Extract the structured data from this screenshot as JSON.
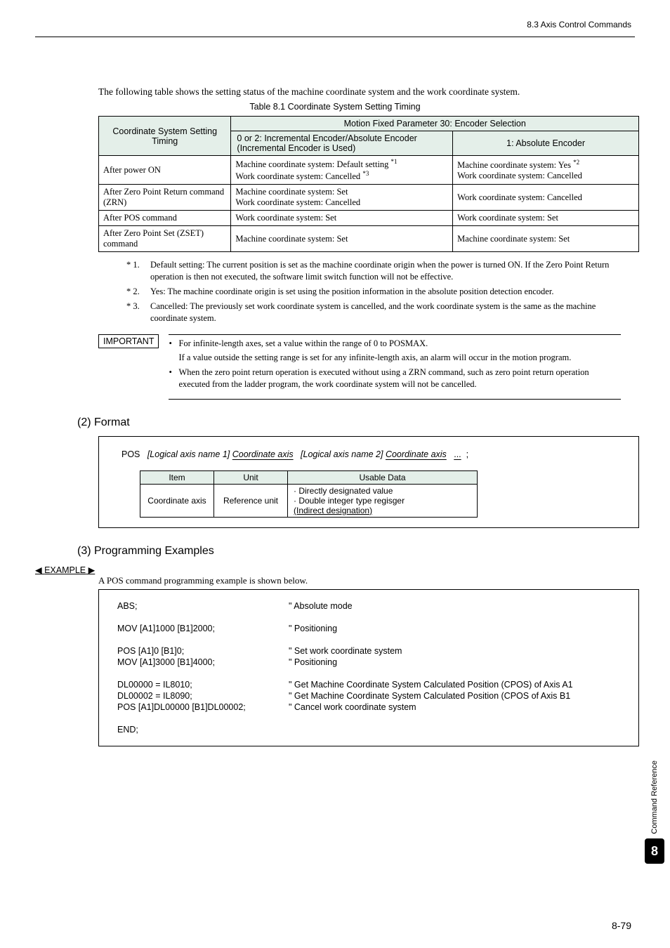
{
  "header": {
    "section": "8.3  Axis Control Commands"
  },
  "intro": "The following table shows the setting status of the machine coordinate system and the work coordinate system.",
  "table_caption": "Table 8.1  Coordinate System Setting Timing",
  "table": {
    "col0_header": "Coordinate System Setting Timing",
    "group_header": "Motion Fixed Parameter 30: Encoder Selection",
    "sub_header_a": "0 or 2: Incremental Encoder/Absolute Encoder (Incremental Encoder is Used)",
    "sub_header_b": "1: Absolute Encoder",
    "rows": [
      {
        "c0": "After power ON",
        "c1a": "Machine coordinate system: Default setting ",
        "c1a_sup": "*1",
        "c1b": "Work coordinate system: Cancelled ",
        "c1b_sup": "*3",
        "c2a": "Machine coordinate system: Yes ",
        "c2a_sup": "*2",
        "c2b": "Work coordinate system: Cancelled"
      },
      {
        "c0": "After Zero Point Return command (ZRN)",
        "c1a": "Machine coordinate system: Set",
        "c1b": "Work coordinate system: Cancelled",
        "c2": "Work coordinate system: Cancelled"
      },
      {
        "c0": "After POS command",
        "c1": "Work coordinate system: Set",
        "c2": "Work coordinate system: Set"
      },
      {
        "c0": "After Zero Point Set (ZSET) command",
        "c1": "Machine coordinate system: Set",
        "c2": "Machine coordinate system: Set"
      }
    ]
  },
  "notes": [
    {
      "n": "* 1.",
      "t": "Default setting: The current position is set as the machine coordinate origin when the power is turned ON. If the Zero Point Return operation is then not executed, the software limit switch function will not be effective."
    },
    {
      "n": "* 2.",
      "t": "Yes: The machine coordinate origin is set using the position information in the absolute position detection encoder."
    },
    {
      "n": "* 3.",
      "t": "Cancelled: The previously set work coordinate system is cancelled, and the work coordinate system is the same as the machine coordinate system."
    }
  ],
  "important": {
    "label": "IMPORTANT",
    "b1a": "For infinite-length axes, set a value within the range of 0 to POSMAX.",
    "b1b": "If a value outside the setting range is set for any infinite-length axis, an alarm will occur in the motion program.",
    "b2": "When the zero point return operation is executed without using a ZRN command, such as zero point return operation executed from the ladder program, the work coordinate system will not be cancelled."
  },
  "sec2": {
    "title": "(2) Format",
    "line": {
      "pos": "POS",
      "p1_label": "[Logical axis name 1]",
      "p1_val": "Coordinate axis",
      "p2_label": "[Logical axis name 2]",
      "p2_val": "Coordinate axis",
      "dots": "...",
      "semi": ";"
    },
    "fmttable": {
      "h1": "Item",
      "h2": "Unit",
      "h3": "Usable Data",
      "r1c1": "Coordinate axis",
      "r1c2": "Reference unit",
      "r1c3a": "· Directly designated value",
      "r1c3b": "· Double integer type regisger",
      "r1c3c": "  (Indirect designation)"
    }
  },
  "sec3": {
    "title": "(3) Programming Examples",
    "marker": "EXAMPLE",
    "intro": "A POS command programming example is shown below.",
    "code": [
      {
        "l": "ABS;",
        "r": "\" Absolute mode"
      },
      {
        "gap": true
      },
      {
        "l": "MOV [A1]1000 [B1]2000;",
        "r": "\" Positioning"
      },
      {
        "gap": true
      },
      {
        "l": "POS [A1]0 [B1]0;",
        "r": "\" Set work coordinate system"
      },
      {
        "l": "MOV [A1]3000 [B1]4000;",
        "r": "\" Positioning"
      },
      {
        "gap": true
      },
      {
        "l": "DL00000 = IL8010;",
        "r": "\" Get Machine Coordinate System Calculated Position (CPOS) of Axis A1"
      },
      {
        "l": "DL00002 = IL8090;",
        "r": "\" Get Machine Coordinate System Calculated Position (CPOS of Axis B1"
      },
      {
        "l": "POS [A1]DL00000 [B1]DL00002;",
        "r": "\" Cancel work coordinate system"
      },
      {
        "gap": true
      },
      {
        "l": "END;",
        "r": ""
      }
    ]
  },
  "side": {
    "label": "Command Reference",
    "num": "8"
  },
  "pagenum": "8-79"
}
